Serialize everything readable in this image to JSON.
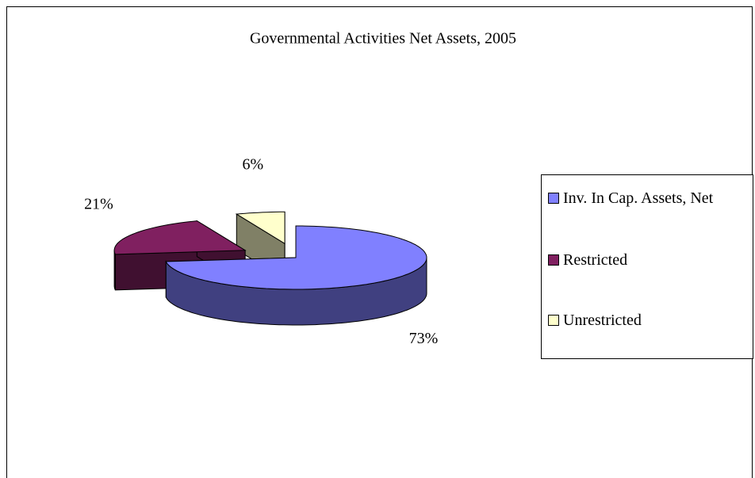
{
  "chart_data": {
    "type": "pie",
    "title": "Governmental Activities Net Assets, 2005",
    "categories": [
      "Inv. In Cap. Assets, Net",
      "Restricted",
      "Unrestricted"
    ],
    "values": [
      73,
      21,
      6
    ],
    "value_labels": [
      "73%",
      "21%",
      "6%"
    ],
    "colors": [
      "#8080ff",
      "#802060",
      "#ffffcc"
    ],
    "legend": "right"
  }
}
